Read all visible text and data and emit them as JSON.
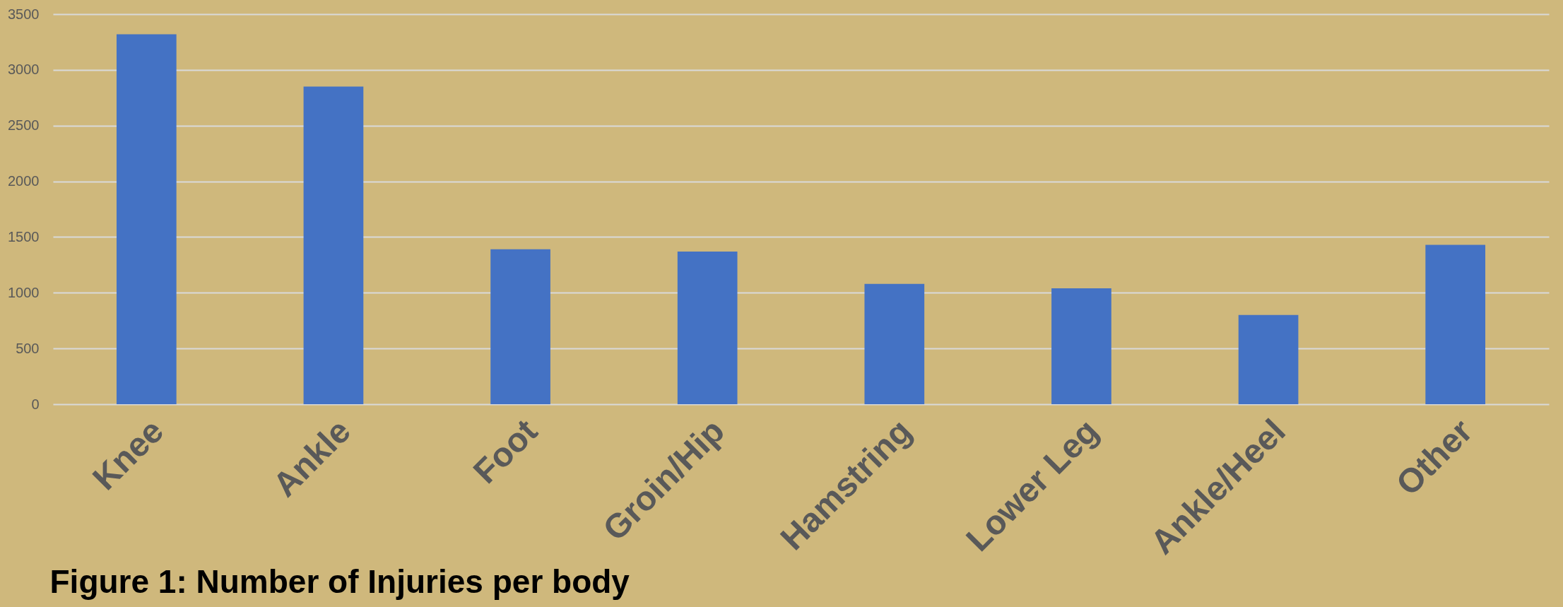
{
  "chart_data": {
    "type": "bar",
    "title": "Figure 1: Number of Injuries per body",
    "categories": [
      "Knee",
      "Ankle",
      "Foot",
      "Groin/Hip",
      "Hamstring",
      "Lower Leg",
      "Ankle/Heel",
      "Other"
    ],
    "values": [
      3320,
      2850,
      1390,
      1370,
      1080,
      1040,
      800,
      1430
    ],
    "color": "#4472c4",
    "ylim": [
      0,
      3500
    ],
    "yticks": [
      0,
      500,
      1000,
      1500,
      2000,
      2500,
      3000,
      3500
    ],
    "grid": "y"
  }
}
